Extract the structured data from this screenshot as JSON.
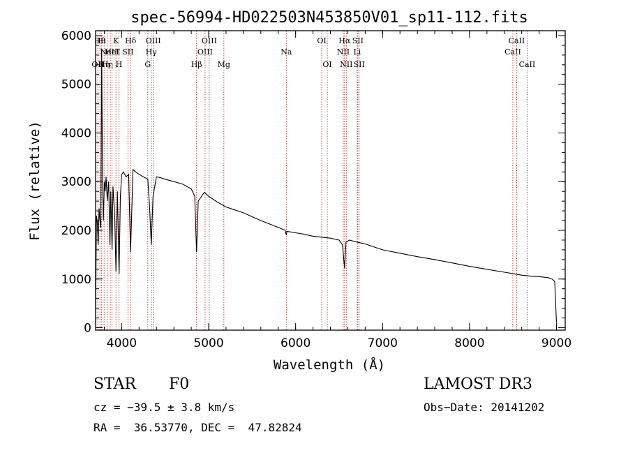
{
  "chart_data": {
    "type": "line",
    "title": "spec-56994-HD022503N453850V01_sp11-112.fits",
    "xlabel": "Wavelength (Å)",
    "ylabel": "Flux (relative)",
    "xlim": [
      3700,
      9100
    ],
    "ylim": [
      -50,
      6100
    ],
    "x_ticks": [
      4000,
      5000,
      6000,
      7000,
      8000,
      9000
    ],
    "x_tick_labels": [
      "4000",
      "5000",
      "6000",
      "7000",
      "8000",
      "9000"
    ],
    "y_ticks": [
      0,
      1000,
      2000,
      3000,
      4000,
      5000,
      6000
    ],
    "y_tick_labels": [
      "0",
      "1000",
      "2000",
      "3000",
      "4000",
      "5000",
      "6000"
    ],
    "grid": false,
    "series": [
      {
        "name": "spectrum",
        "x": [
          3700,
          3710,
          3720,
          3730,
          3740,
          3750,
          3760,
          3770,
          3780,
          3790,
          3800,
          3810,
          3820,
          3835,
          3850,
          3865,
          3875,
          3889,
          3900,
          3920,
          3934,
          3950,
          3970,
          3985,
          4000,
          4020,
          4050,
          4080,
          4102,
          4130,
          4160,
          4200,
          4250,
          4300,
          4320,
          4340,
          4360,
          4400,
          4450,
          4500,
          4600,
          4700,
          4800,
          4840,
          4861,
          4880,
          4950,
          5000,
          5100,
          5200,
          5300,
          5400,
          5500,
          5600,
          5700,
          5800,
          5880,
          5893,
          5900,
          6000,
          6100,
          6200,
          6300,
          6400,
          6500,
          6540,
          6563,
          6580,
          6620,
          6700,
          6800,
          7000,
          7200,
          7400,
          7600,
          7800,
          8000,
          8200,
          8400,
          8500,
          8600,
          8700,
          8800,
          8900,
          8950,
          8980,
          8990,
          9000
        ],
        "y": [
          50,
          2300,
          2150,
          1700,
          2450,
          2200,
          2050,
          5700,
          3000,
          2200,
          3000,
          2800,
          3100,
          2600,
          3000,
          1700,
          2800,
          1600,
          2900,
          2300,
          1150,
          2800,
          1100,
          2700,
          3150,
          3200,
          3100,
          3150,
          1550,
          3250,
          3200,
          3150,
          3100,
          3050,
          2500,
          1700,
          2700,
          3100,
          3080,
          3050,
          3000,
          2950,
          2850,
          2700,
          1550,
          2600,
          2780,
          2700,
          2580,
          2480,
          2420,
          2360,
          2280,
          2200,
          2130,
          2060,
          2000,
          1900,
          1980,
          1950,
          1920,
          1880,
          1860,
          1840,
          1800,
          1700,
          1220,
          1760,
          1800,
          1760,
          1720,
          1600,
          1530,
          1460,
          1400,
          1330,
          1260,
          1200,
          1140,
          1110,
          1080,
          1060,
          1050,
          1030,
          1000,
          950,
          500,
          100
        ]
      }
    ],
    "line_marks": [
      {
        "wavelength": 3726,
        "label": "OII",
        "row": 3
      },
      {
        "wavelength": 3750,
        "label": "Hθ",
        "row": 1
      },
      {
        "wavelength": 3770,
        "label": "Hι",
        "row": 1
      },
      {
        "wavelength": 3798,
        "label": "Hη",
        "row": 3
      },
      {
        "wavelength": 3835,
        "label": "Hη",
        "row": 3
      },
      {
        "wavelength": 3869,
        "label": "NeIII",
        "row": 2
      },
      {
        "wavelength": 3889,
        "label": "HeI",
        "row": 2
      },
      {
        "wavelength": 3934,
        "label": "K",
        "row": 1
      },
      {
        "wavelength": 3968,
        "label": "H",
        "row": 3
      },
      {
        "wavelength": 4072,
        "label": "SII",
        "row": 2
      },
      {
        "wavelength": 4102,
        "label": "Hδ",
        "row": 1
      },
      {
        "wavelength": 4300,
        "label": "G",
        "row": 3
      },
      {
        "wavelength": 4340,
        "label": "Hγ",
        "row": 2
      },
      {
        "wavelength": 4363,
        "label": "OIII",
        "row": 1
      },
      {
        "wavelength": 4861,
        "label": "Hβ",
        "row": 3
      },
      {
        "wavelength": 4959,
        "label": "OIII",
        "row": 2
      },
      {
        "wavelength": 5007,
        "label": "OIII",
        "row": 1
      },
      {
        "wavelength": 5175,
        "label": "Mg",
        "row": 3
      },
      {
        "wavelength": 5893,
        "label": "Na",
        "row": 2
      },
      {
        "wavelength": 6300,
        "label": "OI",
        "row": 1
      },
      {
        "wavelength": 6364,
        "label": "OI",
        "row": 3
      },
      {
        "wavelength": 6548,
        "label": "NII",
        "row": 2
      },
      {
        "wavelength": 6563,
        "label": "Hα",
        "row": 1
      },
      {
        "wavelength": 6583,
        "label": "NII",
        "row": 3
      },
      {
        "wavelength": 6708,
        "label": "Li",
        "row": 2
      },
      {
        "wavelength": 6716,
        "label": "SII",
        "row": 1
      },
      {
        "wavelength": 6731,
        "label": "SII",
        "row": 3
      },
      {
        "wavelength": 8498,
        "label": "CaII",
        "row": 2
      },
      {
        "wavelength": 8542,
        "label": "CaII",
        "row": 1
      },
      {
        "wavelength": 8662,
        "label": "CaII",
        "row": 3
      }
    ],
    "colors": {
      "spectrum": "#000000",
      "line_marks": "#c0392b",
      "axes": "#000000"
    }
  },
  "info": {
    "class": "STAR",
    "subclass": "F0",
    "survey": "LAMOST DR3",
    "cz": "cz = −39.5 ± 3.8 km/s",
    "obs_date": "Obs−Date: 20141202",
    "coords": "RA =  36.53770, DEC =  47.82824"
  }
}
